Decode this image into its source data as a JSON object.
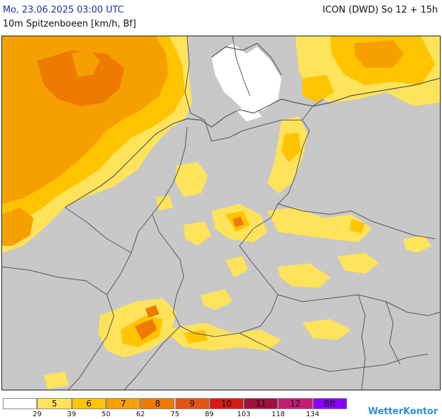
{
  "header": {
    "date": "Mo, 23.06.2025 03:00 UTC",
    "model": "ICON (DWD) So 12 + 15h",
    "parameter": "10m Spitzenboeen [km/h, Bf]"
  },
  "legend": {
    "boxes": [
      {
        "label": "",
        "color": "#ffffff"
      },
      {
        "label": "5",
        "color": "#ffe35a"
      },
      {
        "label": "6",
        "color": "#ffc400"
      },
      {
        "label": "7",
        "color": "#f5a000"
      },
      {
        "label": "8",
        "color": "#ee7a00"
      },
      {
        "label": "9",
        "color": "#e45214"
      },
      {
        "label": "10",
        "color": "#d81818"
      },
      {
        "label": "11",
        "color": "#a0103a"
      },
      {
        "label": "12",
        "color": "#c41c78"
      },
      {
        "label": "Bft",
        "color": "#8a00ff"
      }
    ],
    "ticks": [
      "29",
      "39",
      "50",
      "62",
      "75",
      "89",
      "103",
      "118",
      "134"
    ]
  },
  "brand": "WetterKontor",
  "colors": {
    "land_background": "#c8c8c8",
    "border_lines": "#555555",
    "title_blue": "#1d2fa6"
  }
}
